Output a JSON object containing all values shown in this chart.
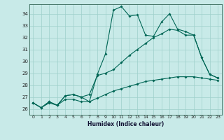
{
  "xlabel": "Humidex (Indice chaleur)",
  "xlim": [
    -0.5,
    23.5
  ],
  "ylim": [
    25.5,
    34.8
  ],
  "yticks": [
    26,
    27,
    28,
    29,
    30,
    31,
    32,
    33,
    34
  ],
  "xticks": [
    0,
    1,
    2,
    3,
    4,
    5,
    6,
    7,
    8,
    9,
    10,
    11,
    12,
    13,
    14,
    15,
    16,
    17,
    18,
    19,
    20,
    21,
    22,
    23
  ],
  "bg_color": "#c8eae8",
  "grid_color": "#9ecfcb",
  "line_color": "#006655",
  "line1_x": [
    0,
    1,
    2,
    3,
    4,
    5,
    6,
    7,
    8,
    9,
    10,
    11,
    12,
    13,
    14,
    15,
    16,
    17,
    18,
    19,
    20,
    21,
    22,
    23
  ],
  "line1_y": [
    26.5,
    26.1,
    26.6,
    26.3,
    27.1,
    27.2,
    27.0,
    26.6,
    28.9,
    30.6,
    34.3,
    34.6,
    33.8,
    33.9,
    32.2,
    32.1,
    33.3,
    34.0,
    32.7,
    32.5,
    32.2,
    30.3,
    28.9,
    28.6
  ],
  "line2_x": [
    0,
    1,
    2,
    3,
    4,
    5,
    6,
    7,
    8,
    9,
    10,
    11,
    12,
    13,
    14,
    15,
    16,
    17,
    18,
    19,
    20,
    21,
    22,
    23
  ],
  "line2_y": [
    26.5,
    26.1,
    26.6,
    26.3,
    27.1,
    27.2,
    27.0,
    27.2,
    28.8,
    29.0,
    29.3,
    29.9,
    30.5,
    31.0,
    31.5,
    32.0,
    32.3,
    32.7,
    32.6,
    32.2,
    32.2,
    30.3,
    28.9,
    28.6
  ],
  "line3_x": [
    0,
    1,
    2,
    3,
    4,
    5,
    6,
    7,
    8,
    9,
    10,
    11,
    12,
    13,
    14,
    15,
    16,
    17,
    18,
    19,
    20,
    21,
    22,
    23
  ],
  "line3_y": [
    26.5,
    26.1,
    26.5,
    26.3,
    26.8,
    26.8,
    26.6,
    26.6,
    26.9,
    27.2,
    27.5,
    27.7,
    27.9,
    28.1,
    28.3,
    28.4,
    28.5,
    28.6,
    28.7,
    28.7,
    28.7,
    28.6,
    28.5,
    28.4
  ]
}
